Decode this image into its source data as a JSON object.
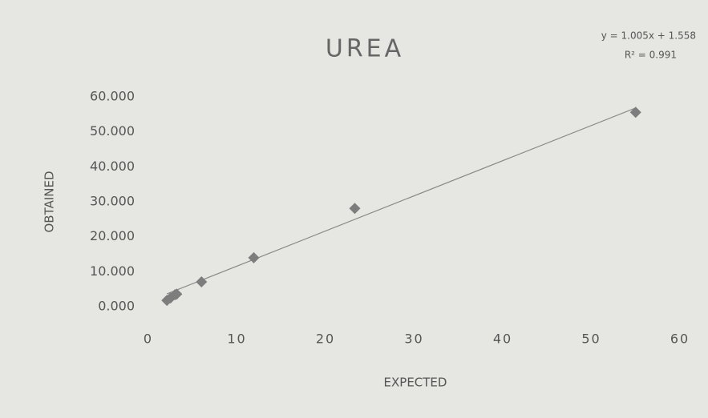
{
  "chart_data": {
    "type": "scatter",
    "title": "UREA",
    "x_label": "EXPECTED",
    "y_label": "OBTAINED",
    "x": [
      2.1,
      2.5,
      3.0,
      3.2,
      6.0,
      11.9,
      23.3,
      55.0
    ],
    "series": [
      {
        "name": "OBTAINED",
        "color": "#7d7d7d",
        "values": [
          1.8,
          2.5,
          3.4,
          3.6,
          7.1,
          14.0,
          28.1,
          55.6
        ]
      }
    ],
    "trendline": {
      "equation": "y = 1.005x + 1.558",
      "r2": "R² = 0.991",
      "slope": 1.005,
      "intercept": 1.558,
      "color": "#8a8a8a"
    },
    "xlim": [
      0,
      60
    ],
    "xticks": [
      0,
      10,
      20,
      30,
      40,
      50,
      60
    ],
    "ylim": [
      0,
      60
    ],
    "yticks": [
      {
        "value": 0,
        "label": "0.000"
      },
      {
        "value": 10,
        "label": "10.000"
      },
      {
        "value": 20,
        "label": "20.000"
      },
      {
        "value": 30,
        "label": "30.000"
      },
      {
        "value": 40,
        "label": "40.000"
      },
      {
        "value": 50,
        "label": "50.000"
      },
      {
        "value": 60,
        "label": "60.000"
      }
    ],
    "grid": false
  }
}
